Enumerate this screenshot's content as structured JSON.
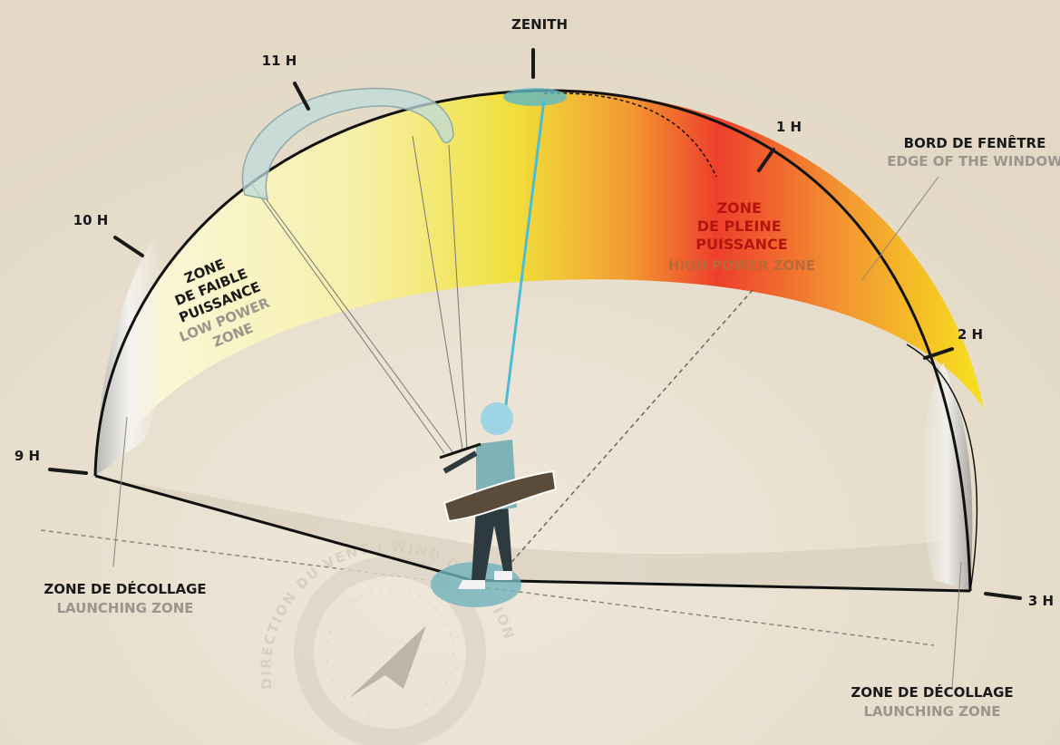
{
  "clock_labels": {
    "zenith": "ZENITH",
    "h11": "11 H",
    "h1": "1 H",
    "h10": "10 H",
    "h2": "2 H",
    "h9": "9 H",
    "h3": "3 H"
  },
  "window_edge": {
    "title": "BORD DE FENÊTRE",
    "subtitle": "EDGE OF THE WINDOW"
  },
  "high_power_zone": {
    "title_lines": [
      "ZONE",
      "DE PLEINE",
      "PUISSANCE"
    ],
    "subtitle": "HIGH POWER ZONE"
  },
  "low_power_zone": {
    "title_lines": [
      "ZONE",
      "DE FAIBLE",
      "PUISSANCE"
    ],
    "subtitle_lines": [
      "LOW POWER",
      "ZONE"
    ]
  },
  "launching_zones": [
    {
      "title": "ZONE DE DÉCOLLAGE",
      "subtitle": "LAUNCHING ZONE"
    },
    {
      "title": "ZONE DE DÉCOLLAGE",
      "subtitle": "LAUNCHING ZONE"
    }
  ],
  "wind_direction": "DIRECTION DU VENT / WIND DIRECTION"
}
